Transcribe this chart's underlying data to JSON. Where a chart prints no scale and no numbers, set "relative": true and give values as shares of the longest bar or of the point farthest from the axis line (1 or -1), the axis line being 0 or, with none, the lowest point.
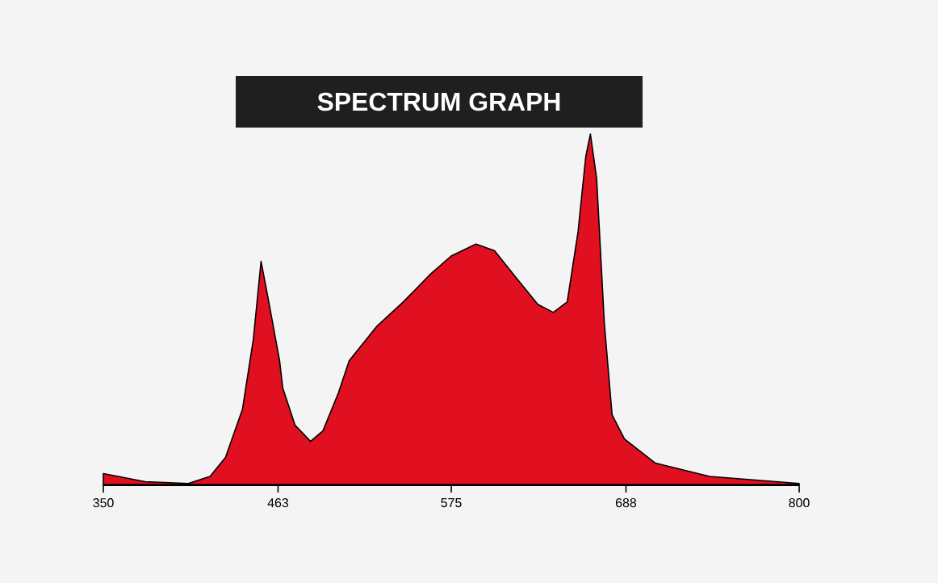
{
  "chart_data": {
    "type": "area",
    "title": "SPECTRUM GRAPH",
    "relative": true,
    "xlim": [
      350,
      800
    ],
    "xticks": [
      350,
      463,
      575,
      688,
      800
    ],
    "color": "#e01020",
    "x": [
      350,
      377,
      405,
      419,
      429,
      440,
      447,
      452,
      457,
      464,
      466,
      474,
      484,
      492,
      502,
      509,
      527,
      544,
      561,
      575,
      591,
      603,
      617,
      631,
      641,
      650,
      657,
      662,
      665,
      669,
      674,
      679,
      687,
      707,
      742,
      800
    ],
    "values": [
      0.031,
      0.008,
      0.003,
      0.023,
      0.077,
      0.215,
      0.414,
      0.637,
      0.521,
      0.353,
      0.276,
      0.169,
      0.123,
      0.153,
      0.261,
      0.353,
      0.452,
      0.521,
      0.598,
      0.652,
      0.686,
      0.667,
      0.59,
      0.514,
      0.491,
      0.521,
      0.721,
      0.936,
      1.0,
      0.874,
      0.46,
      0.199,
      0.13,
      0.061,
      0.023,
      0.003
    ]
  }
}
